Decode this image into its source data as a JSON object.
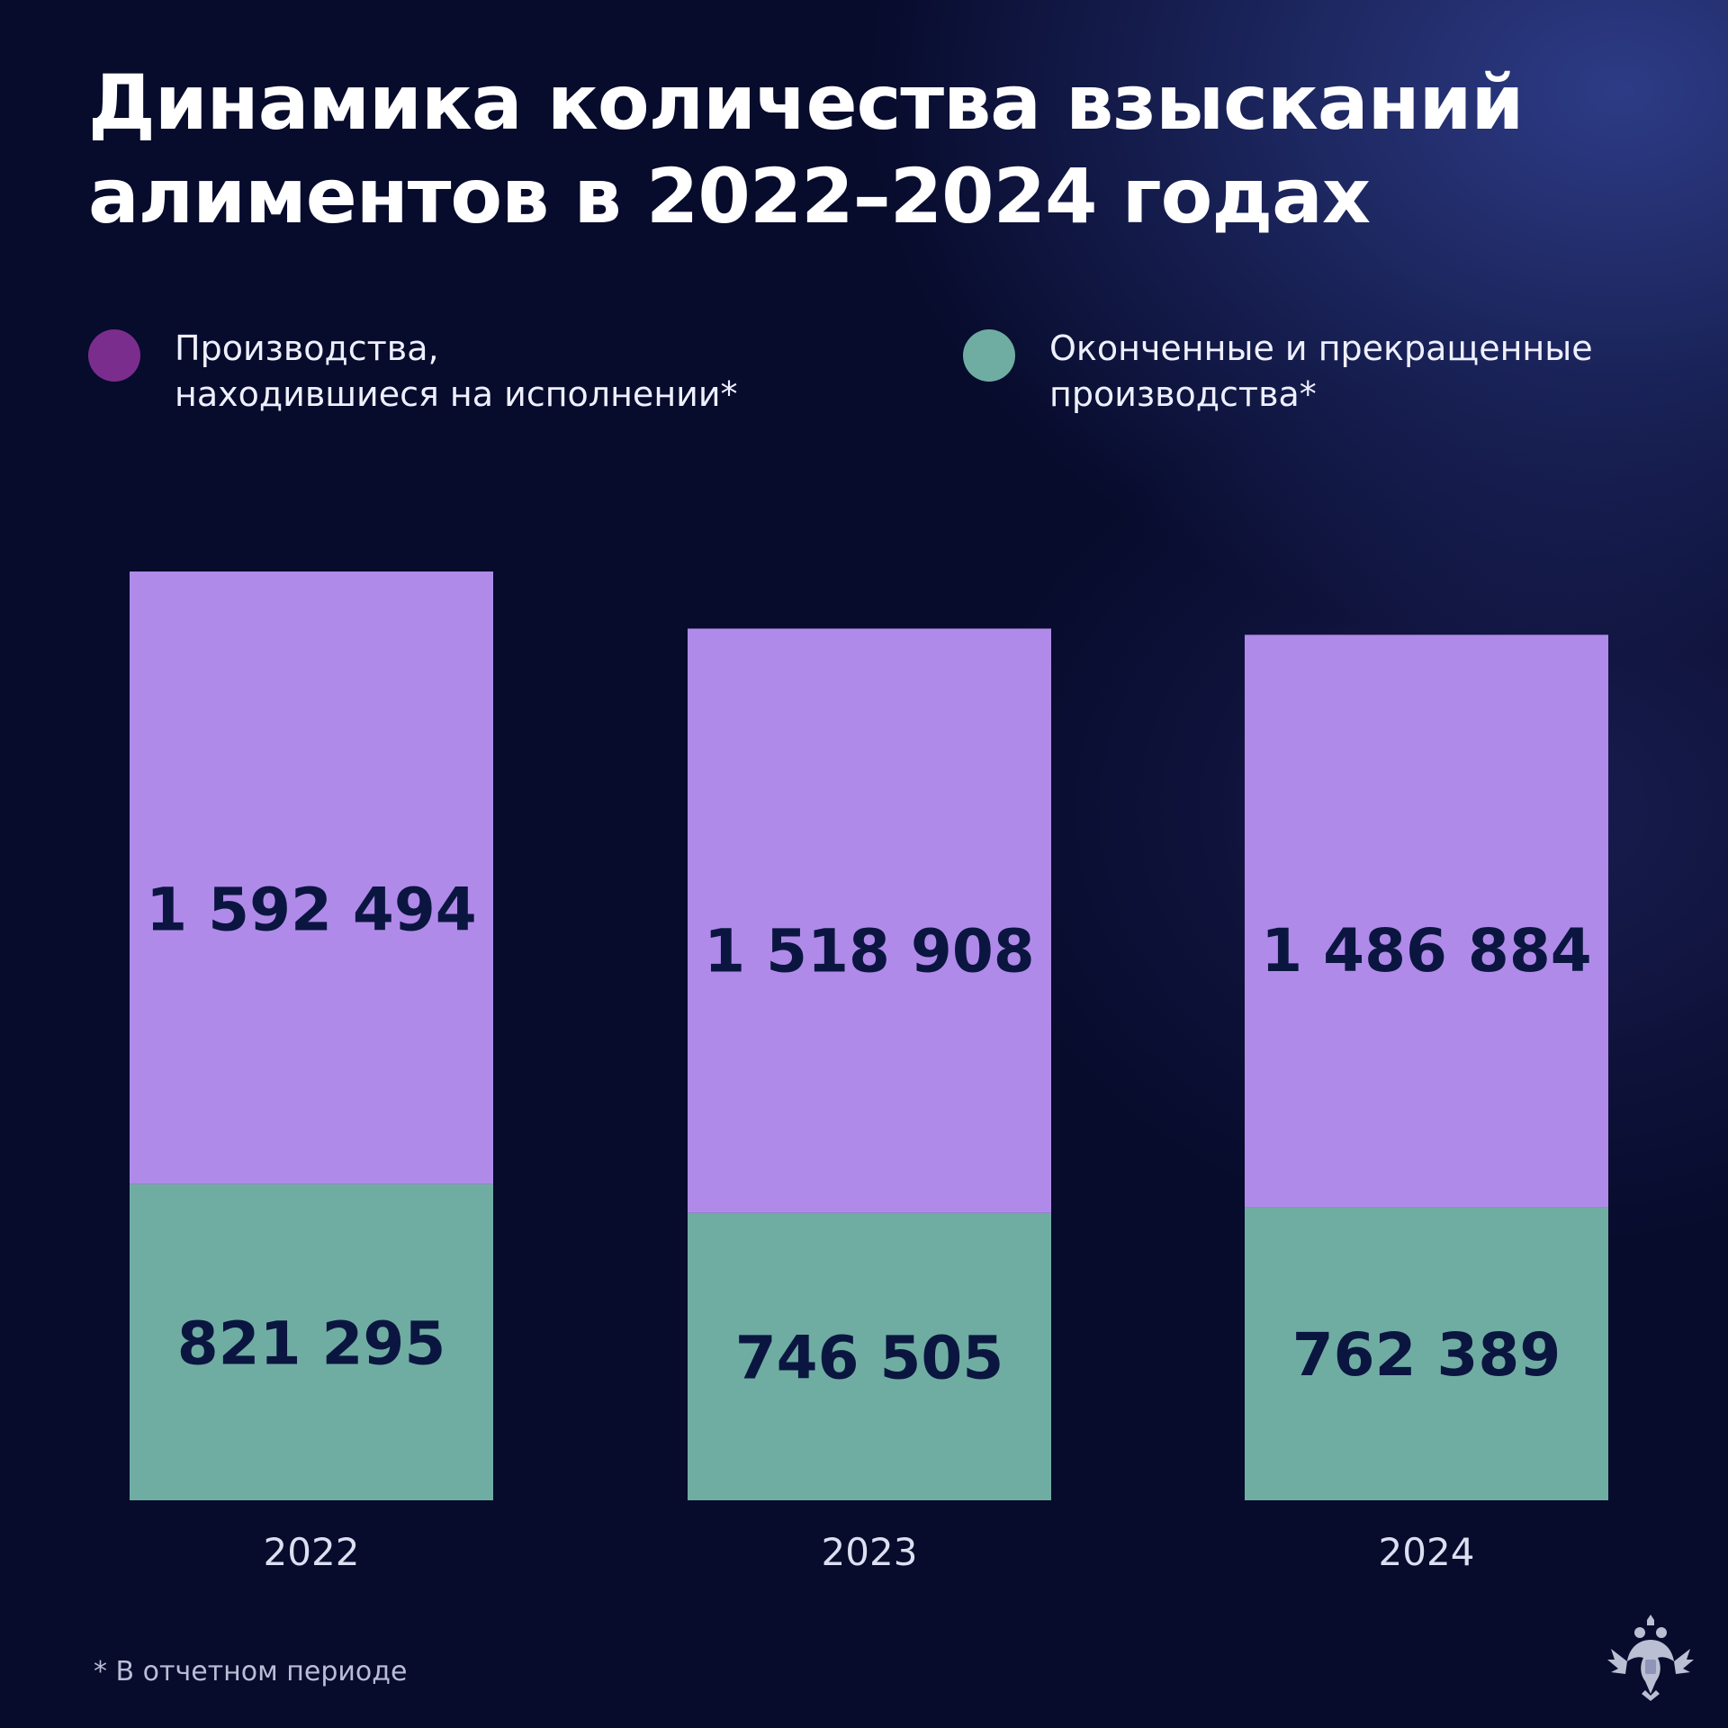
{
  "title_line1": "Динамика количества взысканий",
  "title_line2": "алиментов в 2022–2024 годах",
  "legend": [
    {
      "line1": "Производства,",
      "line2": "находившиеся на исполнении*",
      "color": "#7b2d8e"
    },
    {
      "line1": "Оконченные и прекращенные",
      "line2": "производства*",
      "color": "#6fada2"
    }
  ],
  "footnote": "* В отчетном периоде",
  "colors": {
    "background": "#070b2c",
    "bar_top": "#b08ae9",
    "bar_bottom": "#6fada2",
    "value_text": "#0b1640",
    "axis_text": "#dcdff0"
  },
  "chart_data": {
    "type": "bar",
    "stacked": true,
    "categories": [
      "2022",
      "2023",
      "2024"
    ],
    "series": [
      {
        "name": "Оконченные и прекращенные производства*",
        "values": [
          821295,
          746505,
          762389
        ],
        "labels": [
          "821 295",
          "746 505",
          "762 389"
        ]
      },
      {
        "name": "Производства, находившиеся на исполнении*",
        "values": [
          1592494,
          1518908,
          1486884
        ],
        "labels": [
          "1 592 494",
          "1 518 908",
          "1 486 884"
        ]
      }
    ],
    "title": "Динамика количества взысканий алиментов в 2022–2024 годах",
    "grid": false,
    "legend_position": "top"
  }
}
